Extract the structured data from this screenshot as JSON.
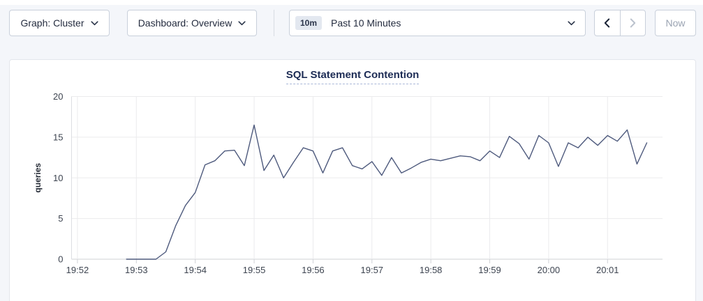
{
  "toolbar": {
    "graph_dropdown": {
      "label": "Graph: Cluster",
      "icon": "chevron-down-icon"
    },
    "dashboard_dropdown": {
      "label": "Dashboard: Overview",
      "icon": "chevron-down-icon"
    },
    "time_picker": {
      "badge": "10m",
      "label": "Past 10 Minutes",
      "icon": "chevron-down-icon"
    },
    "time_back": {
      "icon": "chevron-left-icon",
      "enabled": true
    },
    "time_forward": {
      "icon": "chevron-right-icon",
      "enabled": false
    },
    "now_button": {
      "label": "Now",
      "enabled": false
    }
  },
  "chart_data": {
    "type": "line",
    "title": "SQL Statement Contention",
    "ylabel": "queries",
    "ylim": [
      0,
      20
    ],
    "y_ticks": [
      0,
      5,
      10,
      15,
      20
    ],
    "x_tick_labels": [
      "19:52",
      "19:53",
      "19:54",
      "19:55",
      "19:56",
      "19:57",
      "19:58",
      "19:59",
      "20:00",
      "20:01"
    ],
    "x_domain": [
      "19:51:54",
      "20:01:56"
    ],
    "grid": true,
    "legend": "none",
    "line_color": "#4e5a7d",
    "series": [
      {
        "name": "queries",
        "times": [
          "19:52:50",
          "19:53:00",
          "19:53:10",
          "19:53:20",
          "19:53:30",
          "19:53:40",
          "19:53:50",
          "19:54:00",
          "19:54:10",
          "19:54:20",
          "19:54:30",
          "19:54:40",
          "19:54:50",
          "19:55:00",
          "19:55:10",
          "19:55:20",
          "19:55:30",
          "19:55:40",
          "19:55:50",
          "19:56:00",
          "19:56:10",
          "19:56:20",
          "19:56:30",
          "19:56:40",
          "19:56:50",
          "19:57:00",
          "19:57:10",
          "19:57:20",
          "19:57:30",
          "19:57:40",
          "19:57:50",
          "19:58:00",
          "19:58:10",
          "19:58:20",
          "19:58:30",
          "19:58:40",
          "19:58:50",
          "19:59:00",
          "19:59:10",
          "19:59:20",
          "19:59:30",
          "19:59:40",
          "19:59:50",
          "20:00:00",
          "20:00:10",
          "20:00:20",
          "20:00:30",
          "20:00:40",
          "20:00:50",
          "20:01:00",
          "20:01:10",
          "20:01:20",
          "20:01:30",
          "20:01:40"
        ],
        "values": [
          0,
          0,
          0,
          0,
          0.9,
          4.1,
          6.6,
          8.2,
          11.6,
          12.1,
          13.3,
          13.4,
          11.5,
          16.5,
          10.9,
          12.8,
          10.0,
          11.9,
          13.7,
          13.3,
          10.6,
          13.3,
          13.7,
          11.5,
          11.1,
          12.0,
          10.3,
          12.5,
          10.6,
          11.2,
          11.9,
          12.3,
          12.1,
          12.4,
          12.7,
          12.6,
          12.1,
          13.3,
          12.5,
          15.1,
          14.2,
          12.3,
          15.2,
          14.3,
          11.4,
          14.3,
          13.7,
          15.0,
          14.0,
          15.2,
          14.5,
          15.9,
          11.7,
          14.3
        ]
      }
    ]
  }
}
